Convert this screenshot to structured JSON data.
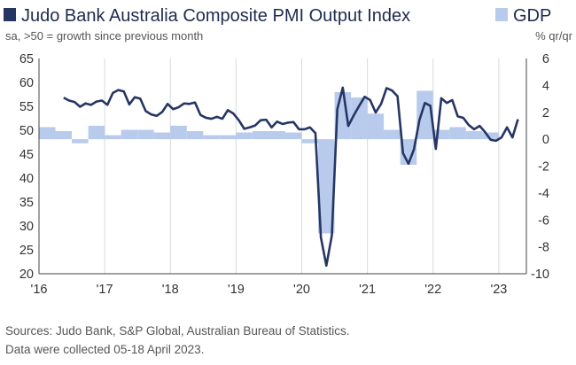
{
  "chart_data": {
    "type": "bar+line",
    "title": "Judo Bank Australia Composite PMI Output Index",
    "subtitle": "sa, >50 = growth since previous month",
    "legend": {
      "line": "",
      "bar": "GDP",
      "bar_unit": "% qr/qr",
      "placement": "top"
    },
    "left_axis": {
      "min": 20,
      "max": 65,
      "ticks": [
        "65",
        "60",
        "55",
        "50",
        "45",
        "40",
        "35",
        "30",
        "25",
        "20"
      ]
    },
    "right_axis": {
      "min": -10,
      "max": 6,
      "ticks": [
        "6",
        "4",
        "2",
        "0",
        "-2",
        "-4",
        "-6",
        "-8",
        "-10"
      ]
    },
    "x_ticks": [
      {
        "label": "'16",
        "year": 2016
      },
      {
        "label": "'17",
        "year": 2017
      },
      {
        "label": "'18",
        "year": 2018
      },
      {
        "label": "'19",
        "year": 2019
      },
      {
        "label": "'20",
        "year": 2020
      },
      {
        "label": "'21",
        "year": 2021
      },
      {
        "label": "'22",
        "year": 2022
      },
      {
        "label": "'23",
        "year": 2023
      }
    ],
    "gdp_series": {
      "name": "GDP",
      "quarters": [
        "2016Q1",
        "2016Q2",
        "2016Q3",
        "2016Q4",
        "2017Q1",
        "2017Q2",
        "2017Q3",
        "2017Q4",
        "2018Q1",
        "2018Q2",
        "2018Q3",
        "2018Q4",
        "2019Q1",
        "2019Q2",
        "2019Q3",
        "2019Q4",
        "2020Q1",
        "2020Q2",
        "2020Q3",
        "2020Q4",
        "2021Q1",
        "2021Q2",
        "2021Q3",
        "2021Q4",
        "2022Q1",
        "2022Q2",
        "2022Q3",
        "2022Q4"
      ],
      "values": [
        0.9,
        0.6,
        -0.3,
        1.0,
        0.3,
        0.7,
        0.7,
        0.5,
        1.0,
        0.6,
        0.3,
        0.3,
        0.5,
        0.6,
        0.6,
        0.5,
        -0.3,
        -7.0,
        3.5,
        3.1,
        1.9,
        0.7,
        -1.9,
        3.6,
        0.7,
        0.9,
        0.6,
        0.5
      ]
    },
    "pmi_series": {
      "name": "Composite PMI Output Index",
      "months": [
        "2016-05",
        "2016-06",
        "2016-07",
        "2016-08",
        "2016-09",
        "2016-10",
        "2016-11",
        "2016-12",
        "2017-01",
        "2017-02",
        "2017-03",
        "2017-04",
        "2017-05",
        "2017-06",
        "2017-07",
        "2017-08",
        "2017-09",
        "2017-10",
        "2017-11",
        "2017-12",
        "2018-01",
        "2018-02",
        "2018-03",
        "2018-04",
        "2018-05",
        "2018-06",
        "2018-07",
        "2018-08",
        "2018-09",
        "2018-10",
        "2018-11",
        "2018-12",
        "2019-01",
        "2019-02",
        "2019-03",
        "2019-04",
        "2019-05",
        "2019-06",
        "2019-07",
        "2019-08",
        "2019-09",
        "2019-10",
        "2019-11",
        "2019-12",
        "2020-01",
        "2020-02",
        "2020-03",
        "2020-04",
        "2020-05",
        "2020-06",
        "2020-07",
        "2020-08",
        "2020-09",
        "2020-10",
        "2020-11",
        "2020-12",
        "2021-01",
        "2021-02",
        "2021-03",
        "2021-04",
        "2021-05",
        "2021-06",
        "2021-07",
        "2021-08",
        "2021-09",
        "2021-10",
        "2021-11",
        "2021-12",
        "2022-01",
        "2022-02",
        "2022-03",
        "2022-04",
        "2022-05",
        "2022-06",
        "2022-07",
        "2022-08",
        "2022-09",
        "2022-10",
        "2022-11",
        "2022-12",
        "2023-01",
        "2023-02",
        "2023-03",
        "2023-04"
      ],
      "values": [
        56.8,
        56.2,
        55.9,
        54.9,
        55.6,
        55.3,
        56.0,
        56.2,
        55.3,
        57.8,
        58.4,
        58.1,
        55.4,
        56.9,
        56.6,
        54.0,
        53.3,
        53.0,
        53.8,
        55.5,
        54.4,
        54.8,
        55.6,
        55.5,
        55.8,
        53.2,
        52.6,
        52.4,
        52.8,
        52.4,
        54.2,
        53.5,
        52.1,
        50.3,
        50.6,
        51.0,
        52.1,
        52.2,
        50.6,
        51.8,
        51.3,
        51.6,
        51.7,
        50.2,
        50.2,
        50.6,
        49.4,
        27.6,
        21.7,
        28.0,
        54.4,
        58.9,
        50.9,
        53.1,
        55.1,
        57.0,
        56.3,
        53.7,
        55.5,
        58.8,
        58.3,
        57.1,
        45.2,
        43.0,
        46.0,
        52.1,
        55.7,
        55.1,
        46.1,
        56.7,
        55.7,
        56.3,
        52.9,
        52.6,
        51.1,
        50.2,
        50.9,
        49.6,
        48.0,
        47.8,
        48.5,
        50.6,
        48.5,
        52.3
      ]
    },
    "grid": "vertical",
    "notes": [
      "Sources: Judo Bank, S&P Global, Australian Bureau of Statistics.",
      "Data were collected 05-18 April 2023."
    ]
  },
  "colors": {
    "line": "#263663",
    "bar": "#b9cbec",
    "title": "#1f2a4f",
    "grid": "#d9d9d9",
    "axis": "#444444",
    "text": "#333333"
  }
}
